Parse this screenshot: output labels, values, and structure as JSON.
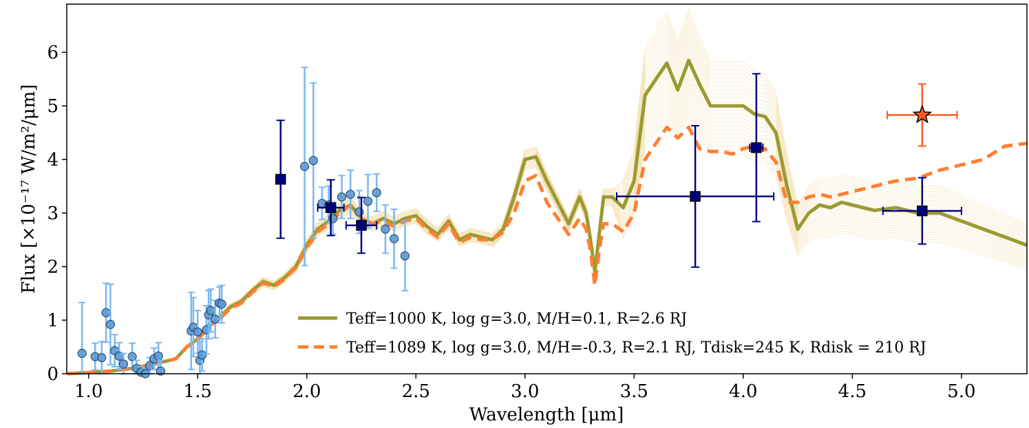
{
  "chart_data": {
    "type": "line",
    "xlabel": "Wavelength [μm]",
    "ylabel": "Flux [×10⁻¹⁷ W/m²/μm]",
    "xlim": [
      0.9,
      5.3
    ],
    "ylim": [
      0,
      6.9
    ],
    "xticks": [
      1.0,
      1.5,
      2.0,
      2.5,
      3.0,
      3.5,
      4.0,
      4.5,
      5.0
    ],
    "xtick_labels": [
      "1.0",
      "1.5",
      "2.0",
      "2.5",
      "3.0",
      "3.5",
      "4.0",
      "4.5",
      "5.0"
    ],
    "yticks": [
      0,
      1,
      2,
      3,
      4,
      5,
      6
    ],
    "ytick_labels": [
      "0",
      "1",
      "2",
      "3",
      "4",
      "5",
      "6"
    ],
    "legend_position": "lower-right",
    "colors": {
      "model1": "#9a9a32",
      "model2": "#ff7f33",
      "samples": "#f3d9a0",
      "spectrum_marker": "#5b9bd5",
      "spectrum_error": "#7ab8ef",
      "photometry": "#000080",
      "star": "#ff5a1a"
    },
    "series": [
      {
        "name": "T_eff=1000 K, log g=3.0, M/H=0.1, R=2.6 R_J",
        "legend_label": "Teff=1000 K, log g=3.0, M/H=0.1, R=2.6 RJ",
        "style": "solid",
        "x": [
          0.9,
          1.0,
          1.1,
          1.2,
          1.3,
          1.4,
          1.45,
          1.5,
          1.55,
          1.6,
          1.65,
          1.7,
          1.75,
          1.8,
          1.85,
          1.9,
          1.95,
          2.0,
          2.05,
          2.1,
          2.15,
          2.2,
          2.25,
          2.3,
          2.35,
          2.4,
          2.45,
          2.5,
          2.55,
          2.6,
          2.65,
          2.7,
          2.75,
          2.8,
          2.85,
          2.9,
          2.95,
          3.0,
          3.05,
          3.1,
          3.15,
          3.2,
          3.25,
          3.28,
          3.3,
          3.32,
          3.34,
          3.36,
          3.4,
          3.45,
          3.5,
          3.55,
          3.6,
          3.65,
          3.7,
          3.75,
          3.8,
          3.85,
          3.9,
          3.95,
          4.0,
          4.05,
          4.1,
          4.15,
          4.2,
          4.25,
          4.3,
          4.35,
          4.4,
          4.45,
          4.5,
          4.6,
          4.7,
          4.8,
          4.9,
          5.0,
          5.1,
          5.2,
          5.3
        ],
        "y": [
          0.0,
          0.02,
          0.05,
          0.1,
          0.18,
          0.28,
          0.5,
          0.65,
          0.9,
          1.05,
          1.25,
          1.35,
          1.55,
          1.72,
          1.65,
          1.8,
          2.0,
          2.4,
          2.7,
          2.85,
          3.05,
          3.15,
          2.9,
          2.8,
          2.9,
          2.8,
          2.9,
          2.95,
          2.75,
          2.6,
          2.85,
          2.5,
          2.6,
          2.55,
          2.5,
          2.7,
          3.3,
          4.0,
          4.05,
          3.6,
          3.2,
          2.8,
          3.3,
          3.0,
          2.5,
          1.9,
          2.6,
          3.3,
          3.3,
          3.1,
          3.6,
          5.2,
          5.5,
          5.8,
          5.3,
          5.85,
          5.4,
          5.0,
          5.0,
          5.0,
          5.0,
          4.85,
          4.8,
          4.5,
          3.5,
          2.7,
          3.0,
          3.15,
          3.1,
          3.2,
          3.15,
          3.05,
          3.1,
          3.0,
          3.0,
          2.85,
          2.7,
          2.55,
          2.4
        ]
      },
      {
        "name": "T_eff=1089 K, log g=3.0, M/H=-0.3, R=2.1 R_J, T_disk=245 K, R_disk = 210 R_J",
        "legend_label": "Teff=1089 K, log g=3.0, M/H=-0.3, R=2.1 RJ, Tdisk=245 K, Rdisk = 210 RJ",
        "style": "dashed",
        "x": [
          0.9,
          1.0,
          1.1,
          1.2,
          1.3,
          1.4,
          1.45,
          1.5,
          1.55,
          1.6,
          1.65,
          1.7,
          1.75,
          1.8,
          1.85,
          1.9,
          1.95,
          2.0,
          2.05,
          2.1,
          2.15,
          2.2,
          2.25,
          2.3,
          2.35,
          2.4,
          2.45,
          2.5,
          2.55,
          2.6,
          2.65,
          2.7,
          2.75,
          2.8,
          2.85,
          2.9,
          2.95,
          3.0,
          3.05,
          3.1,
          3.15,
          3.2,
          3.25,
          3.28,
          3.3,
          3.32,
          3.34,
          3.36,
          3.4,
          3.45,
          3.5,
          3.55,
          3.6,
          3.65,
          3.7,
          3.75,
          3.8,
          3.85,
          3.9,
          3.95,
          4.0,
          4.05,
          4.1,
          4.15,
          4.2,
          4.25,
          4.3,
          4.35,
          4.4,
          4.45,
          4.5,
          4.6,
          4.7,
          4.8,
          4.9,
          5.0,
          5.1,
          5.2,
          5.3
        ],
        "y": [
          0.0,
          0.02,
          0.05,
          0.1,
          0.18,
          0.28,
          0.5,
          0.63,
          0.88,
          1.02,
          1.22,
          1.32,
          1.52,
          1.7,
          1.62,
          1.78,
          1.98,
          2.35,
          2.65,
          2.8,
          3.0,
          3.15,
          2.9,
          2.8,
          2.85,
          2.75,
          2.85,
          2.9,
          2.7,
          2.55,
          2.8,
          2.45,
          2.55,
          2.5,
          2.5,
          2.65,
          3.0,
          3.6,
          3.7,
          3.2,
          2.9,
          2.6,
          2.9,
          2.7,
          2.3,
          1.65,
          2.3,
          2.8,
          2.8,
          2.65,
          3.0,
          4.0,
          4.3,
          4.6,
          4.4,
          4.6,
          4.2,
          4.15,
          4.15,
          4.1,
          4.2,
          4.25,
          4.2,
          3.95,
          3.2,
          3.2,
          3.3,
          3.35,
          3.3,
          3.35,
          3.4,
          3.5,
          3.6,
          3.65,
          3.8,
          3.9,
          4.0,
          4.25,
          4.3
        ]
      }
    ],
    "spectrum_points": [
      {
        "x": 0.97,
        "y": 0.38,
        "err": 0.95
      },
      {
        "x": 1.03,
        "y": 0.32,
        "err": 0.25
      },
      {
        "x": 1.06,
        "y": 0.3,
        "err": 0.3
      },
      {
        "x": 1.08,
        "y": 1.14,
        "err": 0.55
      },
      {
        "x": 1.1,
        "y": 0.92,
        "err": 0.75
      },
      {
        "x": 1.12,
        "y": 0.43,
        "err": 0.3
      },
      {
        "x": 1.14,
        "y": 0.33,
        "err": 0.25
      },
      {
        "x": 1.16,
        "y": 0.18,
        "err": 0.2
      },
      {
        "x": 1.2,
        "y": 0.32,
        "err": 0.25
      },
      {
        "x": 1.22,
        "y": 0.1,
        "err": 0.15
      },
      {
        "x": 1.24,
        "y": 0.03,
        "err": 0.1
      },
      {
        "x": 1.26,
        "y": 0.0,
        "err": 0.1
      },
      {
        "x": 1.28,
        "y": 0.15,
        "err": 0.15
      },
      {
        "x": 1.3,
        "y": 0.28,
        "err": 0.2
      },
      {
        "x": 1.32,
        "y": 0.33,
        "err": 0.25
      },
      {
        "x": 1.33,
        "y": 0.05,
        "err": 0.2
      },
      {
        "x": 1.47,
        "y": 0.8,
        "err": 0.72
      },
      {
        "x": 1.48,
        "y": 0.87,
        "err": 0.55
      },
      {
        "x": 1.5,
        "y": 0.78,
        "err": 0.4
      },
      {
        "x": 1.51,
        "y": 0.25,
        "err": 0.35
      },
      {
        "x": 1.52,
        "y": 0.35,
        "err": 0.3
      },
      {
        "x": 1.54,
        "y": 0.82,
        "err": 0.45
      },
      {
        "x": 1.55,
        "y": 1.1,
        "err": 0.45
      },
      {
        "x": 1.56,
        "y": 1.18,
        "err": 0.4
      },
      {
        "x": 1.58,
        "y": 1.02,
        "err": 0.35
      },
      {
        "x": 1.6,
        "y": 1.32,
        "err": 0.3
      },
      {
        "x": 1.61,
        "y": 1.3,
        "err": 0.35
      },
      {
        "x": 1.99,
        "y": 3.87,
        "err": 1.85
      },
      {
        "x": 2.03,
        "y": 3.98,
        "err": 1.45
      },
      {
        "x": 2.07,
        "y": 3.18,
        "err": 0.3
      },
      {
        "x": 2.1,
        "y": 3.15,
        "err": 0.35
      },
      {
        "x": 2.12,
        "y": 2.9,
        "err": 0.3
      },
      {
        "x": 2.16,
        "y": 3.3,
        "err": 0.4
      },
      {
        "x": 2.2,
        "y": 3.35,
        "err": 0.45
      },
      {
        "x": 2.24,
        "y": 3.02,
        "err": 0.4
      },
      {
        "x": 2.28,
        "y": 3.22,
        "err": 0.5
      },
      {
        "x": 2.32,
        "y": 3.38,
        "err": 0.35
      },
      {
        "x": 2.36,
        "y": 2.7,
        "err": 0.45
      },
      {
        "x": 2.4,
        "y": 2.52,
        "err": 0.55
      },
      {
        "x": 2.45,
        "y": 2.2,
        "err": 0.65
      }
    ],
    "photometry": [
      {
        "x": 1.88,
        "y": 3.63,
        "yerr": 1.1,
        "xerr": 0.0
      },
      {
        "x": 2.11,
        "y": 3.1,
        "yerr": 0.52,
        "xerr": 0.06
      },
      {
        "x": 2.25,
        "y": 2.77,
        "yerr": 0.52,
        "xerr": 0.07
      },
      {
        "x": 3.78,
        "y": 3.31,
        "yerr": 1.32,
        "xerr": 0.36
      },
      {
        "x": 4.06,
        "y": 4.22,
        "yerr": 1.38,
        "xerr": 0.03
      },
      {
        "x": 4.82,
        "y": 3.04,
        "yerr": 0.62,
        "xerr": 0.18
      }
    ],
    "star_point": {
      "x": 4.82,
      "y": 4.83,
      "yerr": 0.58,
      "xerr": 0.16
    }
  }
}
